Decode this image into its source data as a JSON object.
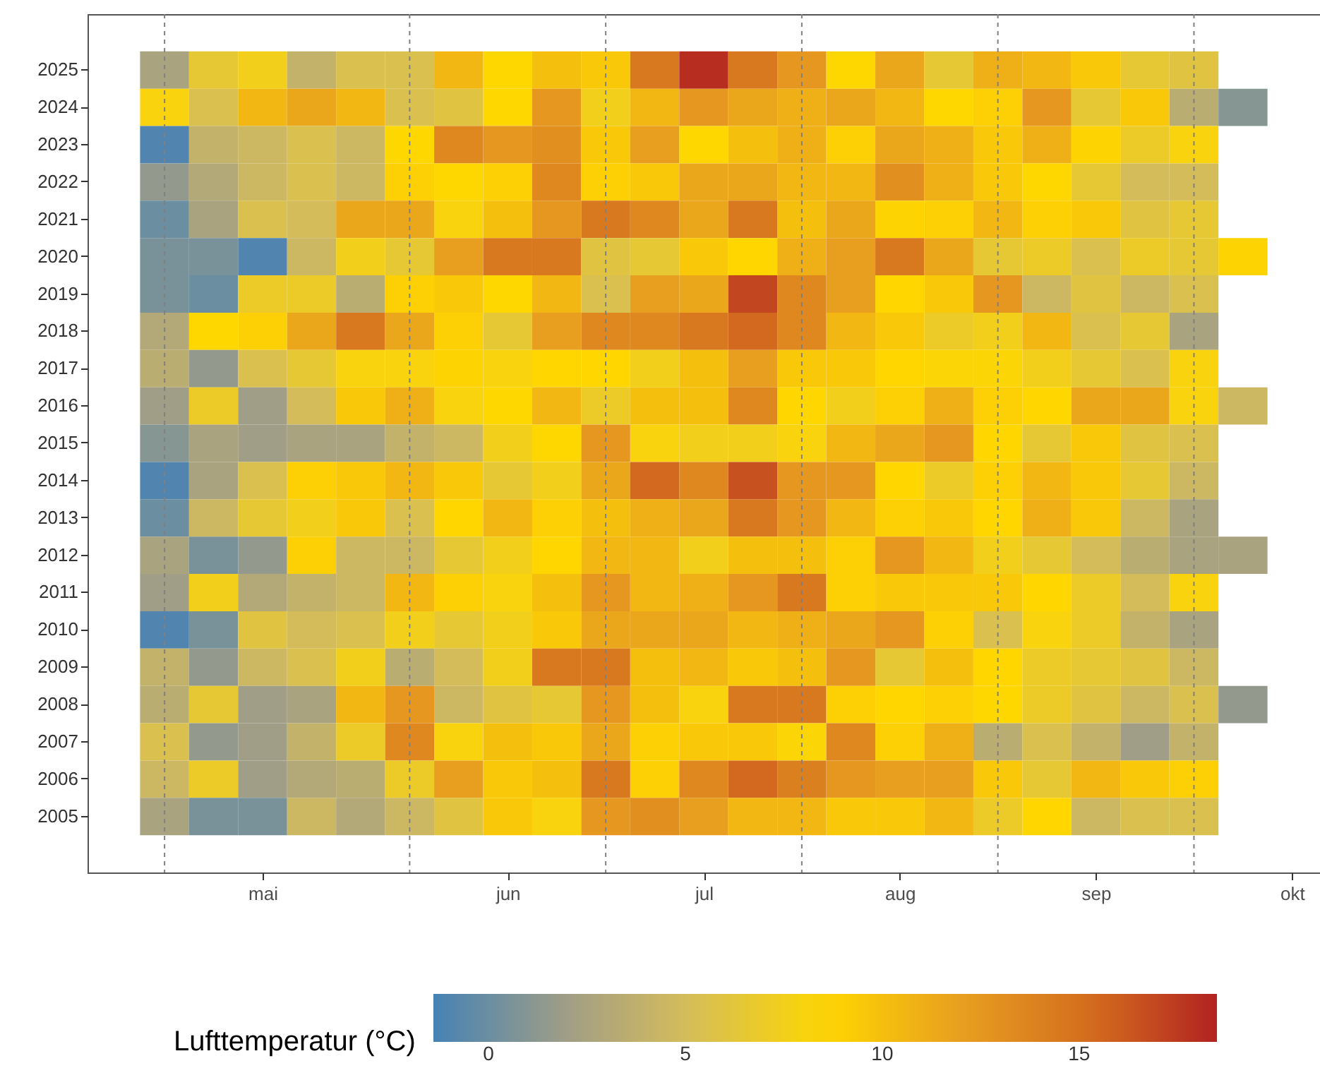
{
  "chart_data": {
    "type": "heatmap",
    "x": [
      "--05-01",
      "--05-08",
      "--05-15",
      "--05-22",
      "--05-29",
      "--06-05",
      "--06-12",
      "--06-19",
      "--06-26",
      "--07-03",
      "--07-10",
      "--07-17",
      "--07-24",
      "--07-31",
      "--08-07",
      "--08-14",
      "--08-21",
      "--08-28",
      "--09-04",
      "--09-11",
      "--09-18",
      "--09-25",
      "--10-02"
    ],
    "xlim": [
      "--04-20",
      "--10-13"
    ],
    "xticks": [
      {
        "value": "--05-15",
        "label": "mai"
      },
      {
        "value": "--06-19",
        "label": "jun"
      },
      {
        "value": "--07-17",
        "label": "jul"
      },
      {
        "value": "--08-14",
        "label": "aug"
      },
      {
        "value": "--09-11",
        "label": "sep"
      },
      {
        "value": "--10-09",
        "label": "okt"
      }
    ],
    "y_categories": [
      "2025",
      "2024",
      "2023",
      "2022",
      "2021",
      "2020",
      "2019",
      "2018",
      "2017",
      "2016",
      "2015",
      "2014",
      "2013",
      "2012",
      "2011",
      "2010",
      "2009",
      "2008",
      "2007",
      "2006",
      "2005"
    ],
    "cells": [
      [
        2.5,
        6.5,
        7.5,
        4,
        5.5,
        5.5,
        10.5,
        8.5,
        10,
        9.5,
        14.5,
        18,
        14.5,
        12.5,
        8.5,
        11.5,
        6.5,
        11,
        10.5,
        9.5,
        6.5,
        6,
        null
      ],
      [
        8,
        5.5,
        10.5,
        11.5,
        10.5,
        5.5,
        6,
        8.5,
        12.5,
        7.5,
        10.5,
        12.5,
        11.5,
        11,
        11.5,
        10.5,
        8.5,
        9,
        12.5,
        6.5,
        9.5,
        3.5,
        1
      ],
      [
        -1,
        4,
        4.5,
        5.5,
        4.5,
        8.5,
        13.5,
        12.5,
        13,
        9.5,
        12,
        8.5,
        10,
        11,
        9,
        11.5,
        11,
        9.5,
        11,
        8.8,
        7,
        8,
        null
      ],
      [
        1.5,
        3,
        4.5,
        5.5,
        4.5,
        9,
        8.5,
        9,
        13.5,
        9,
        9.5,
        11.5,
        11.5,
        10.5,
        10.5,
        13,
        11,
        9.5,
        8.5,
        6.5,
        5,
        5,
        null
      ],
      [
        0,
        2.5,
        5.5,
        5,
        11.5,
        11.5,
        8,
        10,
        12.5,
        14.5,
        13.5,
        11.5,
        14.5,
        10,
        11.5,
        8.8,
        9,
        10.5,
        9,
        9.5,
        6,
        6.5,
        null
      ],
      [
        0.5,
        0.5,
        -1,
        4.5,
        7.5,
        6.5,
        12,
        14.5,
        14.5,
        6,
        6.5,
        9.5,
        8.6,
        11,
        12,
        14.5,
        11.5,
        6.5,
        7,
        5.5,
        7,
        6.5,
        8.8
      ],
      [
        0.5,
        0,
        7,
        7,
        3.5,
        9,
        9.5,
        8.5,
        10.5,
        5.5,
        12,
        11.5,
        17,
        13.5,
        12,
        8.6,
        9.5,
        12.5,
        4.5,
        6,
        4.5,
        5.5,
        null
      ],
      [
        3,
        8.5,
        9,
        11.5,
        14.5,
        11.5,
        9,
        6.5,
        12,
        13.5,
        13.5,
        14.5,
        15.5,
        13.5,
        10.5,
        9.5,
        7,
        7.5,
        10.5,
        5.5,
        6.5,
        2.5,
        null
      ],
      [
        3.5,
        1.5,
        5.5,
        6.5,
        8,
        8,
        8.8,
        8,
        8.6,
        8.6,
        7.5,
        10,
        12,
        9.5,
        9.5,
        8.6,
        8.3,
        8.3,
        7.5,
        6.5,
        5.5,
        8,
        null
      ],
      [
        2,
        7,
        2,
        5,
        9.5,
        11,
        8,
        8.5,
        10.5,
        7,
        10,
        10,
        13.5,
        8.6,
        7.5,
        9,
        11,
        9,
        8.6,
        11.5,
        11.5,
        8,
        4.5
      ],
      [
        1,
        2.5,
        2,
        2.5,
        2.5,
        4,
        4.5,
        7.5,
        8.5,
        12.5,
        8,
        7.5,
        7.5,
        8,
        10.5,
        11.5,
        12.5,
        8.6,
        6.5,
        9.5,
        6,
        5.5,
        null
      ],
      [
        -1,
        2.5,
        5.5,
        9,
        9.5,
        10.5,
        9.5,
        6.5,
        7.5,
        11.5,
        15.5,
        13.5,
        16.5,
        12.5,
        12.5,
        8.6,
        7,
        9,
        10.5,
        9.5,
        6.5,
        4.5,
        null
      ],
      [
        0,
        4.5,
        6.5,
        7.5,
        9.5,
        5.5,
        8.6,
        10.5,
        9,
        10,
        11,
        11.5,
        14.5,
        12.5,
        10.5,
        9,
        9.5,
        8.6,
        11,
        9.5,
        4.5,
        2.5,
        null
      ],
      [
        2.5,
        0.5,
        1.5,
        9,
        4.5,
        4.5,
        6.5,
        7.5,
        8.6,
        10.5,
        10.5,
        7.5,
        10,
        10,
        9,
        12.5,
        10.5,
        7.5,
        6.5,
        5,
        3.5,
        2.5,
        2.5
      ],
      [
        2,
        7.5,
        3,
        4,
        4.5,
        10.5,
        9,
        8,
        10,
        12.5,
        10.5,
        11,
        12.5,
        14.5,
        9,
        9.5,
        9.5,
        9.5,
        8.6,
        7,
        5,
        8,
        null
      ],
      [
        -1,
        0.5,
        6,
        5,
        5.5,
        7.5,
        6.5,
        7.5,
        9.5,
        11.5,
        11.5,
        11.5,
        10.5,
        11,
        11.5,
        12.5,
        9,
        5.5,
        8,
        7,
        4,
        2.5,
        null
      ],
      [
        4,
        1.5,
        4.5,
        5.5,
        7.5,
        3.5,
        5,
        7.5,
        14.5,
        14.5,
        10,
        10.5,
        9.5,
        10,
        12.5,
        6.5,
        10,
        8.6,
        7,
        6.5,
        6,
        4.5,
        null
      ],
      [
        3.5,
        6.5,
        2,
        2.5,
        10.5,
        12.5,
        4.5,
        6,
        6.5,
        12.5,
        10,
        8,
        14.5,
        14.5,
        9,
        8.6,
        9,
        8.5,
        7,
        6,
        4.5,
        5.5,
        1.5
      ],
      [
        5.5,
        1.5,
        2,
        4,
        7,
        13.5,
        8,
        10,
        9.5,
        11.5,
        9,
        9.5,
        9.5,
        8.3,
        13.5,
        9,
        11,
        3.5,
        5.5,
        4,
        2,
        4,
        null
      ],
      [
        4.5,
        7,
        2,
        3,
        3.5,
        7,
        12,
        9.5,
        10,
        14.5,
        9,
        13.5,
        15.5,
        14,
        12.5,
        12,
        12,
        9.5,
        6.5,
        10.5,
        9.5,
        9,
        null
      ],
      [
        2.5,
        0.5,
        0.5,
        4.5,
        3,
        4.5,
        6,
        9.5,
        8,
        12.5,
        13,
        12,
        10.5,
        10.5,
        9.5,
        9.5,
        10.5,
        7,
        8.6,
        4.5,
        5.5,
        5.5,
        null
      ]
    ],
    "clabel": "Lufttemperatur (°C)",
    "clim": [
      -1.4,
      18.5
    ],
    "cticks": [
      0,
      5,
      10,
      15
    ],
    "ref_lines": [
      {
        "axis": "x",
        "value": "--05-01",
        "color": "#808080",
        "line_style": "dashed"
      },
      {
        "axis": "x",
        "value": "--06-05",
        "color": "#808080",
        "line_style": "dashed"
      },
      {
        "axis": "x",
        "value": "--07-03",
        "color": "#808080",
        "line_style": "dashed"
      },
      {
        "axis": "x",
        "value": "--07-31",
        "color": "#808080",
        "line_style": "dashed"
      },
      {
        "axis": "x",
        "value": "--08-28",
        "color": "#808080",
        "line_style": "dashed"
      },
      {
        "axis": "x",
        "value": "--09-25",
        "color": "#808080",
        "line_style": "dashed"
      }
    ]
  }
}
